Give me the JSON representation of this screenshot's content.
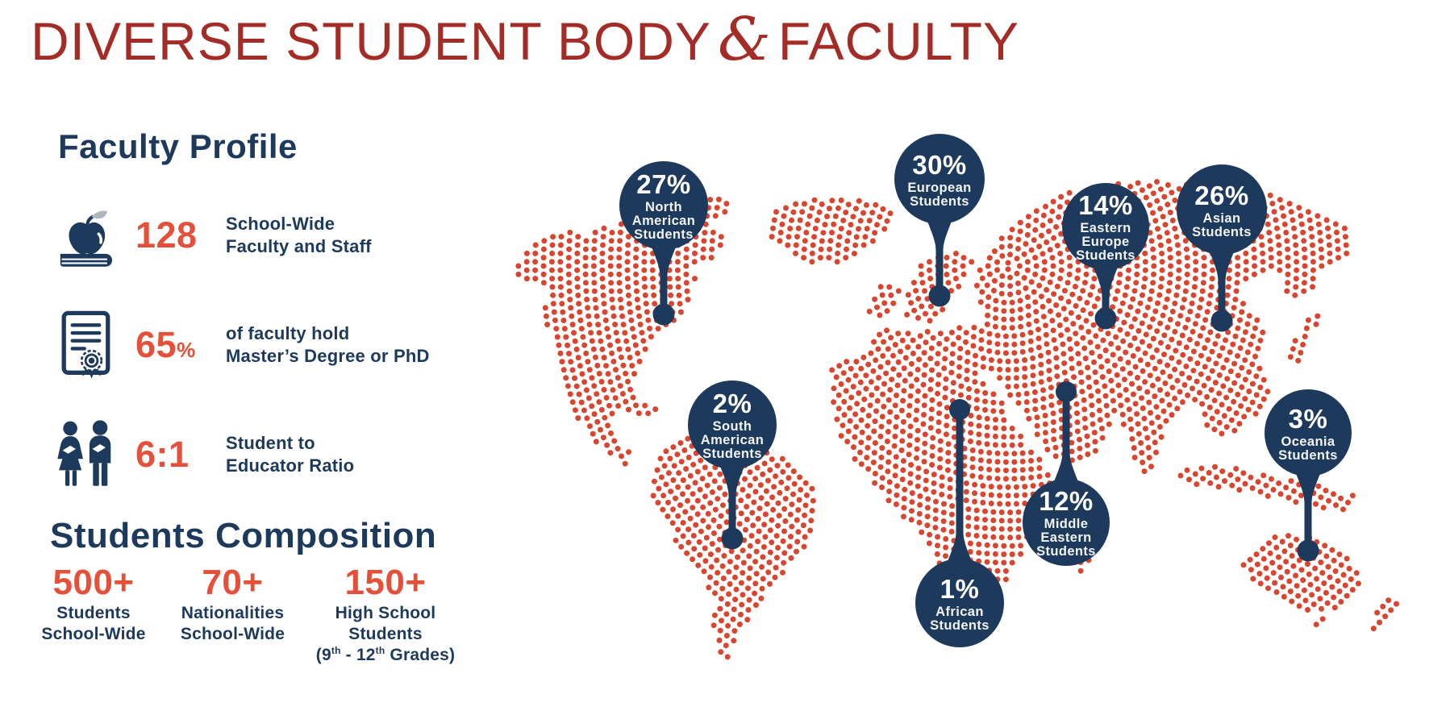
{
  "title": {
    "part1": "DIVERSE STUDENT BODY",
    "amp": "&",
    "part2": "FACULTY"
  },
  "colors": {
    "title_red": "#a32c27",
    "navy": "#1d3a5c",
    "accent_orange": "#e5503a",
    "dot_red": "#d9462f",
    "bubble_text": "#ffffff"
  },
  "faculty_profile": {
    "heading": "Faculty Profile",
    "items": [
      {
        "icon": "apple-books-icon",
        "value": "128",
        "suffix": "",
        "label_lines": [
          "School-Wide",
          "Faculty and Staff"
        ]
      },
      {
        "icon": "certificate-icon",
        "value": "65",
        "suffix": "%",
        "label_lines": [
          "of faculty hold",
          "Master’s Degree or PhD"
        ]
      },
      {
        "icon": "students-icon",
        "value": "6:1",
        "suffix": "",
        "label_lines": [
          "Student to",
          "Educator Ratio"
        ]
      }
    ]
  },
  "students_composition": {
    "heading": "Students Composition",
    "stats": [
      {
        "value": "500+",
        "label_lines": [
          "Students",
          "School-Wide"
        ]
      },
      {
        "value": "70+",
        "label_lines": [
          "Nationalities",
          "School-Wide"
        ]
      },
      {
        "value": "150+",
        "label_lines": [
          "High School",
          "Students"
        ],
        "grades": {
          "p1": "(9",
          "sup1": "th",
          "p2": " - 12",
          "sup2": "th",
          "p3": " Grades)"
        }
      }
    ]
  },
  "map": {
    "regions": [
      {
        "pct": "27%",
        "lines": [
          "North",
          "American",
          "Students"
        ]
      },
      {
        "pct": "30%",
        "lines": [
          "European",
          "Students"
        ]
      },
      {
        "pct": "14%",
        "lines": [
          "Eastern",
          "Europe",
          "Students"
        ]
      },
      {
        "pct": "26%",
        "lines": [
          "Asian",
          "Students"
        ]
      },
      {
        "pct": "2%",
        "lines": [
          "South",
          "American",
          "Students"
        ]
      },
      {
        "pct": "12%",
        "lines": [
          "Middle",
          "Eastern",
          "Students"
        ]
      },
      {
        "pct": "1%",
        "lines": [
          "African",
          "Students"
        ]
      },
      {
        "pct": "3%",
        "lines": [
          "Oceania",
          "Students"
        ]
      }
    ]
  },
  "chart_data": {
    "type": "table",
    "title": "Diverse Student Body & Faculty",
    "categories": [
      "North American Students",
      "European Students",
      "Eastern Europe Students",
      "Asian Students",
      "South American Students",
      "Middle Eastern Students",
      "African Students",
      "Oceania Students"
    ],
    "values": [
      27,
      30,
      14,
      26,
      2,
      12,
      1,
      3
    ],
    "unit": "%",
    "other_stats": [
      {
        "label": "School-Wide Faculty and Staff",
        "value": 128
      },
      {
        "label": "Faculty holding Master's Degree or PhD",
        "value": "65%"
      },
      {
        "label": "Student to Educator Ratio",
        "value": "6:1"
      },
      {
        "label": "Students School-Wide",
        "value": "500+"
      },
      {
        "label": "Nationalities School-Wide",
        "value": "70+"
      },
      {
        "label": "High School Students (9th - 12th Grades)",
        "value": "150+"
      }
    ]
  }
}
